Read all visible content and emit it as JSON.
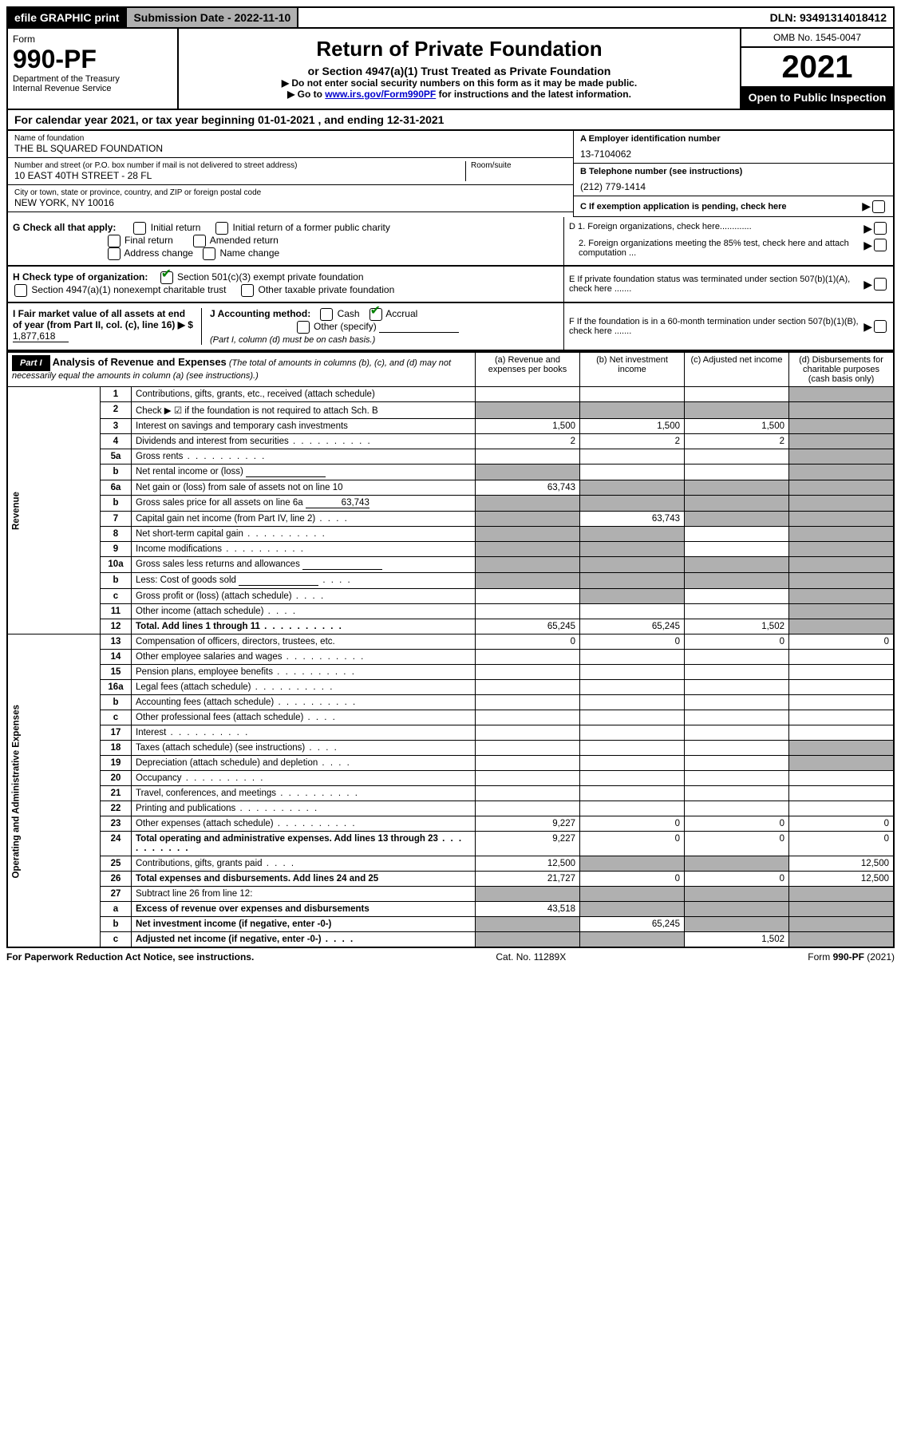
{
  "top": {
    "efile": "efile GRAPHIC print",
    "submission": "Submission Date - 2022-11-10",
    "dln": "DLN: 93491314018412"
  },
  "header": {
    "form": "Form",
    "formno": "990-PF",
    "dept": "Department of the Treasury",
    "irs": "Internal Revenue Service",
    "title": "Return of Private Foundation",
    "subtitle": "or Section 4947(a)(1) Trust Treated as Private Foundation",
    "note1": "▶ Do not enter social security numbers on this form as it may be made public.",
    "note2_a": "▶ Go to ",
    "note2_link": "www.irs.gov/Form990PF",
    "note2_b": " for instructions and the latest information.",
    "omb": "OMB No. 1545-0047",
    "year": "2021",
    "open": "Open to Public Inspection"
  },
  "cal": "For calendar year 2021, or tax year beginning 01-01-2021               , and ending 12-31-2021",
  "info": {
    "name_lbl": "Name of foundation",
    "name": "THE BL SQUARED FOUNDATION",
    "addr_lbl": "Number and street (or P.O. box number if mail is not delivered to street address)",
    "addr": "10 EAST 40TH STREET - 28 FL",
    "room_lbl": "Room/suite",
    "city_lbl": "City or town, state or province, country, and ZIP or foreign postal code",
    "city": "NEW YORK, NY  10016",
    "a_lbl": "A Employer identification number",
    "a_val": "13-7104062",
    "b_lbl": "B Telephone number (see instructions)",
    "b_val": "(212) 779-1414",
    "c_lbl": "C If exemption application is pending, check here"
  },
  "g": {
    "lbl": "G Check all that apply:",
    "o1": "Initial return",
    "o2": "Initial return of a former public charity",
    "o3": "Final return",
    "o4": "Amended return",
    "o5": "Address change",
    "o6": "Name change"
  },
  "h": {
    "lbl": "H Check type of organization:",
    "o1": "Section 501(c)(3) exempt private foundation",
    "o2": "Section 4947(a)(1) nonexempt charitable trust",
    "o3": "Other taxable private foundation"
  },
  "d": {
    "d1": "D 1. Foreign organizations, check here.............",
    "d2": "2. Foreign organizations meeting the 85% test, check here and attach computation ..."
  },
  "e": "E  If private foundation status was terminated under section 507(b)(1)(A), check here .......",
  "i": {
    "lbl": "I Fair market value of all assets at end of year (from Part II, col. (c), line 16) ▶ $ ",
    "val": "1,877,618"
  },
  "j": {
    "lbl": "J Accounting method:",
    "cash": "Cash",
    "accrual": "Accrual",
    "other": "Other (specify)",
    "note": "(Part I, column (d) must be on cash basis.)"
  },
  "f": "F  If the foundation is in a 60-month termination under section 507(b)(1)(B), check here .......",
  "part1": {
    "badge": "Part I",
    "title": "Analysis of Revenue and Expenses",
    "sub": " (The total of amounts in columns (b), (c), and (d) may not necessarily equal the amounts in column (a) (see instructions).)",
    "cols": {
      "a": "(a)  Revenue and expenses per books",
      "b": "(b)  Net investment income",
      "c": "(c)  Adjusted net income",
      "d": "(d)  Disbursements for charitable purposes (cash basis only)"
    }
  },
  "sections": {
    "rev": "Revenue",
    "ope": "Operating and Administrative Expenses"
  },
  "rows": [
    {
      "n": "1",
      "d": "Contributions, gifts, grants, etc., received (attach schedule)",
      "a": "",
      "b": "",
      "c": "",
      "dshade": true
    },
    {
      "n": "2",
      "d": "Check ▶ ☑ if the foundation is not required to attach Sch. B",
      "dfill": true,
      "bshade": true,
      "cshade": true,
      "dshade": true,
      "ashade": true,
      "bold_not": true
    },
    {
      "n": "3",
      "d": "Interest on savings and temporary cash investments",
      "a": "1,500",
      "b": "1,500",
      "c": "1,500",
      "dshade": true
    },
    {
      "n": "4",
      "d": "Dividends and interest from securities",
      "a": "2",
      "b": "2",
      "c": "2",
      "dshade": true,
      "dots": true
    },
    {
      "n": "5a",
      "d": "Gross rents",
      "dots": true,
      "dshade": true
    },
    {
      "n": "b",
      "d": "Net rental income or (loss)",
      "uline": true,
      "ashade": true,
      "dshade": true
    },
    {
      "n": "6a",
      "d": "Net gain or (loss) from sale of assets not on line 10",
      "a": "63,743",
      "bshade": true,
      "cshade": true,
      "dshade": true
    },
    {
      "n": "b",
      "d": "Gross sales price for all assets on line 6a",
      "uval": "63,743",
      "ashade": true,
      "bshade": true,
      "cshade": true,
      "dshade": true
    },
    {
      "n": "7",
      "d": "Capital gain net income (from Part IV, line 2)",
      "dots_s": true,
      "ashade": true,
      "b": "63,743",
      "cshade": true,
      "dshade": true
    },
    {
      "n": "8",
      "d": "Net short-term capital gain",
      "dots": true,
      "ashade": true,
      "bshade": true,
      "dshade": true
    },
    {
      "n": "9",
      "d": "Income modifications",
      "dots": true,
      "ashade": true,
      "bshade": true,
      "dshade": true
    },
    {
      "n": "10a",
      "d": "Gross sales less returns and allowances",
      "uline": true,
      "ashade": true,
      "bshade": true,
      "cshade": true,
      "dshade": true
    },
    {
      "n": "b",
      "d": "Less: Cost of goods sold",
      "uline": true,
      "dots_s": true,
      "ashade": true,
      "bshade": true,
      "cshade": true,
      "dshade": true
    },
    {
      "n": "c",
      "d": "Gross profit or (loss) (attach schedule)",
      "dots_s": true,
      "bshade": true,
      "dshade": true
    },
    {
      "n": "11",
      "d": "Other income (attach schedule)",
      "dots_s": true,
      "dshade": true
    },
    {
      "n": "12",
      "d": "Total. Add lines 1 through 11",
      "bold": true,
      "dots": true,
      "a": "65,245",
      "b": "65,245",
      "c": "1,502",
      "dshade": true
    },
    {
      "n": "13",
      "d": "Compensation of officers, directors, trustees, etc.",
      "a": "0",
      "b": "0",
      "c": "0",
      "dd": "0"
    },
    {
      "n": "14",
      "d": "Other employee salaries and wages",
      "dots": true
    },
    {
      "n": "15",
      "d": "Pension plans, employee benefits",
      "dots": true
    },
    {
      "n": "16a",
      "d": "Legal fees (attach schedule)",
      "dots": true
    },
    {
      "n": "b",
      "d": "Accounting fees (attach schedule)",
      "dots": true
    },
    {
      "n": "c",
      "d": "Other professional fees (attach schedule)",
      "dots_s": true
    },
    {
      "n": "17",
      "d": "Interest",
      "dots": true
    },
    {
      "n": "18",
      "d": "Taxes (attach schedule) (see instructions)",
      "dots_s": true,
      "dshade": true
    },
    {
      "n": "19",
      "d": "Depreciation (attach schedule) and depletion",
      "dots_s": true,
      "dshade": true
    },
    {
      "n": "20",
      "d": "Occupancy",
      "dots": true
    },
    {
      "n": "21",
      "d": "Travel, conferences, and meetings",
      "dots": true
    },
    {
      "n": "22",
      "d": "Printing and publications",
      "dots": true
    },
    {
      "n": "23",
      "d": "Other expenses (attach schedule)",
      "dots": true,
      "a": "9,227",
      "b": "0",
      "c": "0",
      "dd": "0"
    },
    {
      "n": "24",
      "d": "Total operating and administrative expenses. Add lines 13 through 23",
      "bold": true,
      "dots": true,
      "a": "9,227",
      "b": "0",
      "c": "0",
      "dd": "0"
    },
    {
      "n": "25",
      "d": "Contributions, gifts, grants paid",
      "dots_s": true,
      "a": "12,500",
      "bshade": true,
      "cshade": true,
      "dd": "12,500"
    },
    {
      "n": "26",
      "d": "Total expenses and disbursements. Add lines 24 and 25",
      "bold": true,
      "a": "21,727",
      "b": "0",
      "c": "0",
      "dd": "12,500"
    },
    {
      "n": "27",
      "d": "Subtract line 26 from line 12:",
      "ashade": true,
      "bshade": true,
      "cshade": true,
      "dshade": true
    },
    {
      "n": "a",
      "d": "Excess of revenue over expenses and disbursements",
      "bold": true,
      "a": "43,518",
      "bshade": true,
      "cshade": true,
      "dshade": true
    },
    {
      "n": "b",
      "d": "Net investment income (if negative, enter -0-)",
      "bold": true,
      "ashade": true,
      "b": "65,245",
      "cshade": true,
      "dshade": true
    },
    {
      "n": "c",
      "d": "Adjusted net income (if negative, enter -0-)",
      "bold": true,
      "dots_s": true,
      "ashade": true,
      "bshade": true,
      "c": "1,502",
      "dshade": true
    }
  ],
  "footer": {
    "left": "For Paperwork Reduction Act Notice, see instructions.",
    "mid": "Cat. No. 11289X",
    "right": "Form 990-PF (2021)"
  }
}
